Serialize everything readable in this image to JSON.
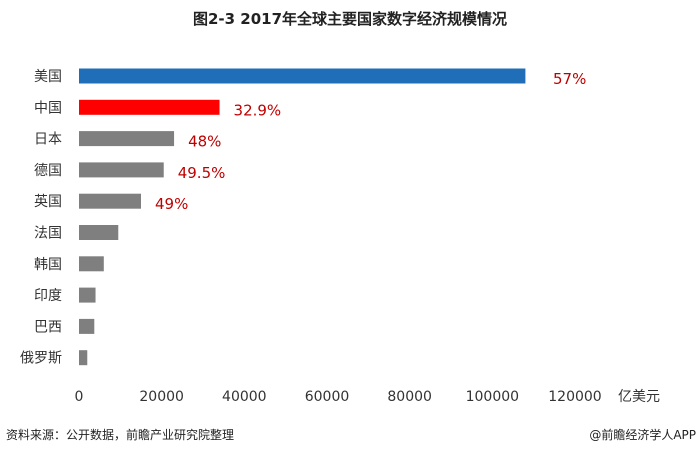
{
  "chart_data": {
    "type": "bar",
    "orientation": "horizontal",
    "title": "图2-3 2017年全球主要国家数字经济规模情况",
    "xlabel": "",
    "ylabel": "",
    "x_unit": "亿美元",
    "xlim": [
      0,
      120000
    ],
    "x_ticks": [
      "0",
      "20000",
      "40000",
      "60000",
      "80000",
      "100000",
      "120000"
    ],
    "grid": false,
    "categories": [
      "美国",
      "中国",
      "日本",
      "德国",
      "英国",
      "法国",
      "韩国",
      "印度",
      "巴西",
      "俄罗斯"
    ],
    "values": [
      108000,
      34000,
      23000,
      20500,
      15000,
      9500,
      6000,
      4000,
      3700,
      2000
    ],
    "data_labels": [
      "57%",
      "32.9%",
      "48%",
      "49.5%",
      "49%",
      "",
      "",
      "",
      "",
      ""
    ],
    "colors": [
      "#1F6EB7",
      "#FF0000",
      "#7F7F7F",
      "#7F7F7F",
      "#7F7F7F",
      "#7F7F7F",
      "#7F7F7F",
      "#7F7F7F",
      "#7F7F7F",
      "#7F7F7F"
    ],
    "data_label_color": "#C00000"
  },
  "footer": {
    "source": "资料来源：公开数据，前瞻产业研究院整理",
    "brand": "@前瞻经济学人APP"
  }
}
